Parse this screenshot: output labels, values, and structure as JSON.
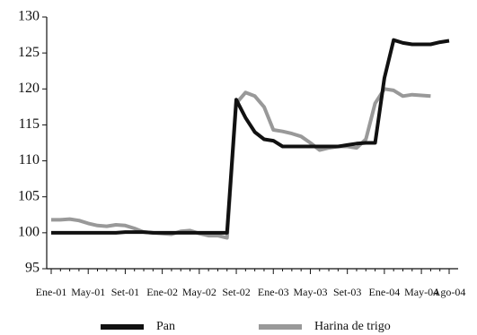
{
  "chart_data": {
    "type": "line",
    "categories": [
      "Ene-01",
      null,
      null,
      null,
      "May-01",
      null,
      null,
      null,
      "Set-01",
      null,
      null,
      null,
      "Ene-02",
      null,
      null,
      null,
      "May-02",
      null,
      null,
      null,
      "Set-02",
      null,
      null,
      null,
      "Ene-03",
      null,
      null,
      null,
      "May-03",
      null,
      null,
      null,
      "Set-03",
      null,
      null,
      null,
      "Ene-04",
      null,
      null,
      null,
      "May-04",
      null,
      null,
      "Ago-04"
    ],
    "series": [
      {
        "name": "Pan",
        "color": "#111111",
        "values": [
          100,
          100,
          100,
          100,
          100,
          100,
          100,
          100,
          100.1,
          100.1,
          100.1,
          100,
          100,
          100,
          100,
          100,
          100,
          100,
          100,
          100,
          118.5,
          116,
          114,
          113,
          112.8,
          112,
          112,
          112,
          112,
          112,
          112,
          112,
          112.2,
          112.4,
          112.5,
          112.5,
          121.5,
          126.8,
          126.4,
          126.2,
          126.2,
          126.2,
          126.5,
          126.7
        ]
      },
      {
        "name": "Harina de trigo",
        "color": "#999999",
        "values": [
          101.8,
          101.8,
          101.9,
          101.7,
          101.3,
          101,
          100.9,
          101.1,
          101,
          100.6,
          100.1,
          100,
          99.9,
          99.8,
          100.2,
          100.3,
          99.9,
          99.6,
          99.6,
          99.3,
          118,
          119.5,
          119,
          117.5,
          114.3,
          114.1,
          113.8,
          113.4,
          112.5,
          111.5,
          111.8,
          112,
          112,
          111.8,
          113,
          118,
          120,
          119.8,
          119,
          119.2,
          119.1,
          119,
          null,
          null
        ]
      }
    ],
    "ylim": [
      95,
      130
    ],
    "yticks": [
      95,
      100,
      105,
      110,
      115,
      120,
      125,
      130
    ],
    "grid": false
  }
}
